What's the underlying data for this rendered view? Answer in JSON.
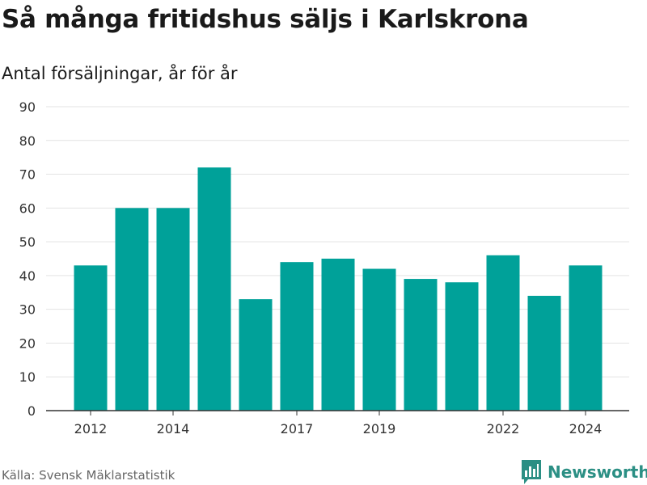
{
  "header": {
    "title": "Så många fritidshus säljs i Karlskrona",
    "subtitle": "Antal försäljningar, år för år"
  },
  "footer": {
    "source": "Källa: Svensk Mäklarstatistik",
    "brand": "Newsworthy"
  },
  "colors": {
    "bar": "#00a199",
    "brand": "#2b8f84",
    "grid": "#e3e3e3",
    "axis": "#333333"
  },
  "icons": {
    "brand_logo": "newsworthy-chart-icon"
  },
  "chart_data": {
    "type": "bar",
    "categories": [
      "2012",
      "2013",
      "2014",
      "2015",
      "2016",
      "2017",
      "2018",
      "2019",
      "2020",
      "2021",
      "2022",
      "2023",
      "2024"
    ],
    "values": [
      43,
      60,
      60,
      72,
      33,
      44,
      45,
      42,
      39,
      38,
      46,
      34,
      43
    ],
    "x_tick_labels": [
      "2012",
      "2014",
      "2017",
      "2019",
      "2022",
      "2024"
    ],
    "y_ticks": [
      0,
      10,
      20,
      30,
      40,
      50,
      60,
      70,
      80,
      90
    ],
    "ylim": [
      0,
      90
    ],
    "title": "Så många fritidshus säljs i Karlskrona",
    "subtitle": "Antal försäljningar, år för år",
    "xlabel": "",
    "ylabel": "",
    "grid": true
  }
}
